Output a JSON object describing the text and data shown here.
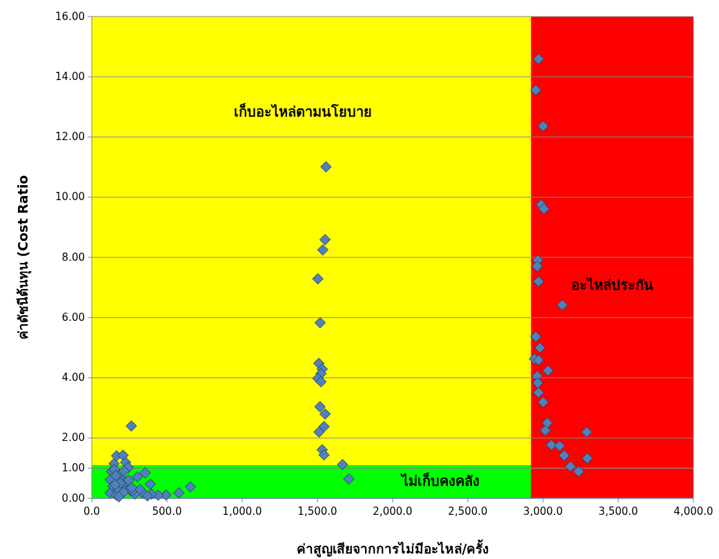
{
  "chart_data": {
    "type": "scatter",
    "xlabel": "ค่าสูญเสียจากการไม่มีอะไหล่/ครั้ง",
    "ylabel": "ค่าดัชนีต้นทุน (Cost Ratio",
    "xlim": [
      0,
      4000
    ],
    "xticks": [
      {
        "value": 0,
        "label": "0.0"
      },
      {
        "value": 500,
        "label": "500.0"
      },
      {
        "value": 1000,
        "label": "1,000.0"
      },
      {
        "value": 1500,
        "label": "1,500.0"
      },
      {
        "value": 2000,
        "label": "2,000.0"
      },
      {
        "value": 2500,
        "label": "2,500.0"
      },
      {
        "value": 3000,
        "label": "3,000.0"
      },
      {
        "value": 3500,
        "label": "3,500.0"
      },
      {
        "value": 4000,
        "label": "4,000.0"
      }
    ],
    "ylim": [
      0,
      16
    ],
    "yticks": [
      {
        "value": 0,
        "label": "0.00"
      },
      {
        "value": 1,
        "label": "1.00"
      },
      {
        "value": 2,
        "label": "2.00"
      },
      {
        "value": 4,
        "label": "4.00"
      },
      {
        "value": 6,
        "label": "6.00"
      },
      {
        "value": 8,
        "label": "8.00"
      },
      {
        "value": 10,
        "label": "10.00"
      },
      {
        "value": 12,
        "label": "12.00"
      },
      {
        "value": 14,
        "label": "14.00"
      },
      {
        "value": 16,
        "label": "16.00"
      }
    ],
    "grid": "y",
    "marker": "diamond",
    "bands": [
      {
        "axis": "x",
        "from": 0,
        "to": 2920,
        "label": "เก็บอะไหล่ตามนโยบาย",
        "color": "#ffff00"
      },
      {
        "axis": "y",
        "from": 0,
        "to": 1.1,
        "label": "ไม่เก็บคงคลัง",
        "color": "#00ff00"
      },
      {
        "axis": "x",
        "from": 2920,
        "to": 4000,
        "label": "อะไหล่ประกัน",
        "color": "#ff0000"
      }
    ],
    "series": [
      {
        "color": "#4f81bd",
        "x": [
          2970,
          2952,
          3000,
          2988,
          3006,
          2965,
          2961,
          2970,
          3128,
          2952,
          2979,
          2943,
          2970,
          3033,
          2961,
          2965,
          2970,
          3001,
          3028,
          3015,
          3056,
          3110,
          3141,
          3182,
          3236,
          3294,
          3290,
          1557,
          1551,
          1536,
          1503,
          1518,
          1510,
          1532,
          1524,
          1503,
          1524,
          1517,
          1551,
          1544,
          1511,
          1532,
          1544,
          1667,
          1709,
          263,
          165,
          208,
          148,
          225,
          131,
          243,
          355,
          303,
          389,
          122,
          200,
          122,
          200,
          493,
          579,
          656,
          338,
          441,
          252,
          286,
          165,
          398,
          183,
          140,
          150,
          175,
          230,
          190,
          215,
          270,
          160,
          245,
          320,
          210,
          180,
          155,
          265,
          370
        ],
        "values": [
          14.59,
          13.56,
          12.36,
          9.75,
          9.61,
          7.91,
          7.71,
          7.2,
          6.42,
          5.37,
          5.0,
          4.63,
          4.59,
          4.24,
          4.06,
          3.83,
          3.51,
          3.19,
          2.5,
          2.25,
          1.77,
          1.74,
          1.42,
          1.06,
          0.89,
          1.33,
          2.2,
          11.01,
          8.59,
          8.25,
          7.29,
          5.83,
          4.48,
          4.29,
          4.14,
          3.98,
          3.87,
          3.04,
          2.8,
          2.38,
          2.2,
          1.61,
          1.44,
          1.12,
          0.64,
          2.4,
          1.41,
          1.43,
          1.15,
          1.19,
          0.89,
          1.02,
          0.84,
          0.71,
          0.47,
          0.62,
          0.62,
          0.18,
          0.36,
          0.11,
          0.18,
          0.38,
          0.17,
          0.1,
          0.28,
          0.14,
          0.1,
          0.14,
          0.8,
          0.4,
          0.95,
          0.3,
          0.55,
          0.5,
          0.9,
          0.25,
          0.75,
          0.6,
          0.3,
          0.2,
          0.05,
          0.45,
          0.35,
          0.08
        ]
      }
    ]
  }
}
